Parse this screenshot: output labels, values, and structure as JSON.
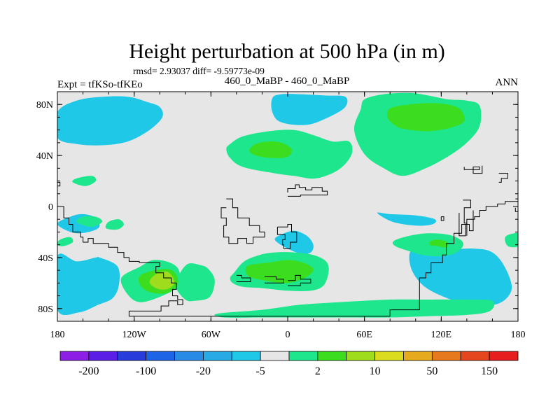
{
  "chart_data": {
    "type": "heatmap",
    "title": "Height perturbation at 500 hPa (in m)",
    "stats": "rmsd= 2.93037 diff= -9.59773e-09",
    "left_label": "Expt = tfKSo-tfKEo",
    "center_label": "460_0_MaBP - 460_0_MaBP",
    "right_label": "ANN",
    "x_range": [
      -180,
      180
    ],
    "y_range": [
      -90,
      90
    ],
    "x_ticks": [
      {
        "value": -180,
        "label": "180"
      },
      {
        "value": -120,
        "label": "120W"
      },
      {
        "value": -60,
        "label": "60W"
      },
      {
        "value": 0,
        "label": "0"
      },
      {
        "value": 60,
        "label": "60E"
      },
      {
        "value": 120,
        "label": "120E"
      },
      {
        "value": 180,
        "label": "180"
      }
    ],
    "y_ticks": [
      {
        "value": 80,
        "label": "80N"
      },
      {
        "value": 40,
        "label": "40N"
      },
      {
        "value": 0,
        "label": "0"
      },
      {
        "value": -40,
        "label": "40S"
      },
      {
        "value": -80,
        "label": "80S"
      }
    ],
    "colorbar": {
      "colors": [
        "#8c1ee6",
        "#5a1ee6",
        "#283cdc",
        "#1e64e6",
        "#288ce6",
        "#28aae6",
        "#1ec8e6",
        "#e6e6e6",
        "#1ee68c",
        "#3cdc1e",
        "#a0dc1e",
        "#dcdc1e",
        "#e6aa1e",
        "#e6781e",
        "#e6461e",
        "#e61e1e"
      ],
      "tick_labels": [
        "-200",
        "-100",
        "-20",
        "-5",
        "2",
        "10",
        "50",
        "150"
      ],
      "tick_bounds": [
        1,
        3,
        5,
        7,
        9,
        11,
        13,
        15
      ]
    },
    "regions": [
      {
        "level": -20,
        "lon": [
          -150,
          -140,
          -125,
          -112,
          -112,
          -125,
          -145,
          -160,
          -175,
          -180,
          -180,
          -165
        ],
        "lat": [
          80,
          83,
          83,
          76,
          68,
          59,
          52,
          54,
          59,
          63,
          72,
          76
        ]
      },
      {
        "level": -20,
        "lon": [
          -165,
          -150,
          -138,
          -138,
          -150,
          -165,
          -180,
          -180
        ],
        "lat": [
          -47,
          -43,
          -48,
          -60,
          -64,
          -61,
          -53,
          -48
        ]
      },
      {
        "level": -20,
        "lon": [
          105,
          125,
          150,
          165,
          170,
          150,
          125,
          107
        ],
        "lat": [
          -41,
          -40,
          -41,
          -45,
          -54,
          -62,
          -62,
          -53
        ]
      },
      {
        "level": -20,
        "lon": [
          0,
          9,
          8,
          0
        ],
        "lat": [
          74,
          74,
          69,
          69
        ]
      },
      {
        "level": -5,
        "lon": [
          -180,
          -165,
          -145,
          -125,
          -110,
          -100,
          -98,
          -108,
          -125,
          -145,
          -165,
          -180
        ],
        "lat": [
          74,
          83,
          86,
          86,
          82,
          78,
          70,
          60,
          51,
          48,
          49,
          54
        ]
      },
      {
        "level": -5,
        "lon": [
          -12,
          -5,
          10,
          30,
          45,
          45,
          32,
          15,
          -5,
          -12
        ],
        "lat": [
          85,
          88,
          88,
          87,
          86,
          78,
          70,
          64,
          66,
          74
        ]
      },
      {
        "level": -5,
        "lon": [
          -150,
          -165,
          -180,
          -180,
          -163,
          -148,
          -137,
          -132,
          -133,
          -147
        ],
        "lat": [
          -40,
          -43,
          -39,
          -81,
          -83,
          -77,
          -72,
          -62,
          -47,
          -40
        ]
      },
      {
        "level": -5,
        "lon": [
          98,
          120,
          145,
          160,
          170,
          175,
          165,
          145,
          125,
          106,
          96
        ],
        "lat": [
          -33,
          -34,
          -33,
          -36,
          -48,
          -65,
          -76,
          -77,
          -72,
          -62,
          -47
        ]
      },
      {
        "level": -5,
        "lon": [
          -5,
          5,
          15,
          20,
          18,
          10,
          -2,
          -10
        ],
        "lat": [
          -22,
          -19,
          -23,
          -30,
          -36,
          -37,
          -32,
          -26
        ]
      },
      {
        "level": -5,
        "lon": [
          -180,
          -170,
          -160,
          -150,
          -148,
          -165
        ],
        "lat": [
          -14,
          -8,
          -6,
          -9,
          -17,
          -21
        ]
      },
      {
        "level": -5,
        "lon": [
          70,
          80,
          100,
          115,
          113,
          100,
          82
        ],
        "lat": [
          -5,
          -6,
          -7,
          -10,
          -14,
          -15,
          -12
        ]
      },
      {
        "level": 2,
        "lon": [
          60,
          75,
          95,
          110,
          125,
          140,
          150,
          150,
          140,
          125,
          108,
          90,
          75,
          60,
          52,
          57
        ],
        "lat": [
          84,
          88,
          89,
          87,
          84,
          83,
          79,
          63,
          50,
          39,
          30,
          24,
          30,
          41,
          60,
          76
        ]
      },
      {
        "level": 2,
        "lon": [
          -45,
          -35,
          -15,
          5,
          20,
          35,
          48,
          50,
          40,
          22,
          5,
          -10,
          -35,
          -45,
          -48
        ],
        "lat": [
          49,
          55,
          59,
          60,
          56,
          51,
          51,
          41,
          29,
          22,
          24,
          26,
          31,
          38,
          45
        ]
      },
      {
        "level": 2,
        "lon": [
          -115,
          -105,
          -92,
          -85,
          -85,
          -98,
          -115,
          -125,
          -130
        ],
        "lat": [
          -47,
          -42,
          -44,
          -50,
          -62,
          -70,
          -75,
          -69,
          -56
        ]
      },
      {
        "level": 2,
        "lon": [
          -85,
          -78,
          -68,
          -62,
          -57,
          -61,
          -73,
          -80,
          -87
        ],
        "lat": [
          -54,
          -45,
          -46,
          -49,
          -58,
          -71,
          -74,
          -73,
          -64
        ]
      },
      {
        "level": 2,
        "lon": [
          -42,
          -34,
          -22,
          -10,
          5,
          20,
          30,
          32,
          28,
          18,
          0,
          -20,
          -35,
          -43,
          -45
        ],
        "lat": [
          -52,
          -43,
          -38,
          -36,
          -36,
          -38,
          -43,
          -51,
          -62,
          -66,
          -66,
          -64,
          -63,
          -60,
          -56
        ]
      },
      {
        "level": 2,
        "lon": [
          -55,
          -20,
          10,
          40,
          80,
          110,
          140,
          160,
          158,
          140,
          110,
          80,
          50,
          20,
          -20,
          -50
        ],
        "lat": [
          -84,
          -81,
          -77,
          -75,
          -73,
          -73,
          -73,
          -74,
          -82,
          -85,
          -86,
          -87,
          -87,
          -87,
          -87,
          -87
        ]
      },
      {
        "level": 2,
        "lon": [
          83,
          95,
          110,
          125,
          135,
          137,
          130,
          118,
          105,
          95,
          84
        ],
        "lat": [
          -27,
          -23,
          -21,
          -22,
          -26,
          -31,
          -37,
          -39,
          -38,
          -35,
          -31
        ]
      },
      {
        "level": 2,
        "lon": [
          -160,
          -150,
          -145,
          -154,
          -165
        ],
        "lat": [
          -8,
          -8,
          -12,
          -16,
          -12
        ]
      },
      {
        "level": 2,
        "lon": [
          -140,
          -132,
          -128,
          -133,
          -142
        ],
        "lat": [
          -12,
          -10,
          -14,
          -18,
          -17
        ]
      },
      {
        "level": 2,
        "lon": [
          -165,
          -153,
          -150,
          -158,
          -168
        ],
        "lat": [
          22,
          24,
          20,
          16,
          19
        ]
      },
      {
        "level": 2,
        "lon": [
          -178,
          -170,
          -168,
          -175,
          -180
        ],
        "lat": [
          -26,
          -24,
          -28,
          -31,
          -30
        ]
      },
      {
        "level": 2,
        "lon": [
          170,
          177,
          180,
          180,
          172
        ],
        "lat": [
          -24,
          -21,
          -22,
          -31,
          -31
        ]
      },
      {
        "level": 10,
        "lon": [
          80,
          95,
          110,
          125,
          135,
          138,
          128,
          110,
          90,
          82,
          78
        ],
        "lat": [
          77,
          80,
          81,
          80,
          76,
          67,
          62,
          59,
          61,
          65,
          70
        ]
      },
      {
        "level": 10,
        "lon": [
          -25,
          -15,
          -5,
          3,
          0,
          -12,
          -25,
          -30
        ],
        "lat": [
          49,
          51,
          50,
          45,
          39,
          38,
          40,
          44
        ]
      },
      {
        "level": 10,
        "lon": [
          -108,
          -95,
          -88,
          -86,
          -95,
          -108,
          -115,
          -116
        ],
        "lat": [
          -51,
          -49,
          -52,
          -61,
          -68,
          -67,
          -62,
          -55
        ]
      },
      {
        "level": 10,
        "lon": [
          -30,
          -15,
          0,
          12,
          20,
          15,
          0,
          -18,
          -30,
          -33
        ],
        "lat": [
          -46,
          -44,
          -42,
          -44,
          -49,
          -55,
          -60,
          -58,
          -55,
          -50
        ]
      },
      {
        "level": 10,
        "lon": [
          112,
          118,
          125,
          124,
          117,
          111
        ],
        "lat": [
          -27,
          -26,
          -28,
          -32,
          -31,
          -30
        ]
      },
      {
        "level": 50,
        "lon": [
          -103,
          -95,
          -90,
          -89,
          -95,
          -103,
          -108
        ],
        "lat": [
          -53,
          -51,
          -55,
          -61,
          -65,
          -64,
          -59
        ]
      }
    ],
    "coastlines": [
      {
        "lon": [
          -180,
          -175,
          -175,
          -171,
          -171,
          -168,
          -168,
          -162,
          -162,
          -160,
          -160,
          -156,
          -156,
          -152,
          -152,
          -140,
          -140,
          -133,
          -133,
          -128,
          -128,
          -124,
          -124,
          -116,
          -116,
          -100,
          -100,
          -103,
          -103,
          -97,
          -97,
          -91,
          -91,
          -87,
          -87,
          -90,
          -90,
          -86,
          -86,
          -82,
          -82,
          -86,
          -86,
          -93,
          -93,
          -99,
          -99,
          -124,
          -124,
          -100,
          -60,
          -20,
          20,
          56,
          80,
          80,
          103,
          103,
          108,
          108,
          112,
          112,
          121,
          121,
          124,
          124,
          130,
          130,
          136,
          136,
          140,
          140,
          146,
          146,
          150,
          150,
          155,
          155,
          164,
          164,
          170,
          170,
          180
        ],
        "lat": [
          0,
          0,
          -9,
          -9,
          -14,
          -14,
          -20,
          -20,
          -24,
          -24,
          -28,
          -28,
          -25,
          -25,
          -29,
          -29,
          -32,
          -32,
          -36,
          -36,
          -40,
          -40,
          -43,
          -43,
          -44,
          -44,
          -47,
          -47,
          -52,
          -52,
          -56,
          -56,
          -60,
          -60,
          -65,
          -65,
          -70,
          -70,
          -73,
          -73,
          -77,
          -77,
          -74,
          -74,
          -78,
          -78,
          -82,
          -82,
          -86,
          -86,
          -86,
          -86,
          -86,
          -86,
          -86,
          -81,
          -81,
          -56,
          -56,
          -52,
          -52,
          -44,
          -44,
          -38,
          -38,
          -29,
          -29,
          -21,
          -21,
          -14,
          -14,
          -10,
          -10,
          -8,
          -8,
          -3,
          -3,
          0,
          0,
          2,
          2,
          4,
          4
        ]
      },
      {
        "lon": [
          -48,
          -43,
          -43,
          -39,
          -39,
          -30,
          -30,
          -22,
          -22,
          -18,
          -18,
          -27,
          -27,
          -32,
          -32,
          -39,
          -39,
          -46,
          -46,
          -50,
          -50,
          -48,
          -48,
          -52,
          -52,
          -48
        ],
        "lat": [
          6,
          6,
          -1,
          -1,
          -9,
          -9,
          -15,
          -15,
          -20,
          -20,
          -24,
          -24,
          -29,
          -29,
          -25,
          -25,
          -29,
          -29,
          -24,
          -24,
          -15,
          -15,
          -9,
          -9,
          -1,
          -1
        ]
      },
      {
        "lon": [
          -8,
          0,
          0,
          3,
          3,
          7,
          7,
          2,
          2,
          -3,
          -3,
          -4,
          -4,
          -2,
          -2,
          -8,
          -8
        ],
        "lat": [
          -16,
          -16,
          -14,
          -14,
          -20,
          -20,
          -28,
          -28,
          -33,
          -33,
          -30,
          -30,
          -26,
          -26,
          -22,
          -22,
          -16
        ]
      },
      {
        "lon": [
          -40,
          -36,
          -36,
          -29,
          -29,
          -40
        ],
        "lat": [
          -54,
          -54,
          -56,
          -56,
          -59,
          -59
        ]
      },
      {
        "lon": [
          -18,
          -9,
          -9,
          -3,
          -3,
          -18
        ],
        "lat": [
          -55,
          -55,
          -57,
          -57,
          -60,
          -60
        ]
      },
      {
        "lon": [
          0,
          6,
          6,
          10,
          10,
          18,
          18,
          10,
          10,
          0
        ],
        "lat": [
          -58,
          -58,
          -54,
          -54,
          -57,
          -57,
          -60,
          -60,
          -62,
          -62
        ]
      },
      {
        "lon": [
          165,
          172,
          172,
          167,
          167,
          165
        ],
        "lat": [
          26,
          26,
          22,
          22,
          19,
          19
        ]
      },
      {
        "lon": [
          134,
          134,
          139,
          139,
          142,
          142,
          145,
          145
        ],
        "lat": [
          -5,
          -23,
          -23,
          -14,
          -14,
          -19,
          -19,
          -3
        ]
      },
      {
        "lon": [
          137,
          143,
          143,
          138,
          138,
          140,
          140
        ],
        "lat": [
          5,
          5,
          -1,
          -1,
          -13,
          -13,
          -23
        ]
      },
      {
        "lon": [
          178,
          180,
          180,
          178,
          178
        ],
        "lat": [
          6,
          6,
          -4,
          -4,
          -1
        ]
      },
      {
        "lon": [
          120,
          122,
          122,
          120,
          120
        ],
        "lat": [
          -8,
          -8,
          -11,
          -11,
          -8
        ]
      },
      {
        "lon": [
          0,
          0,
          6,
          6,
          9,
          9,
          14,
          14,
          19,
          19,
          27,
          27,
          31,
          31,
          10,
          10,
          0
        ],
        "lat": [
          11,
          14,
          14,
          17,
          17,
          15,
          15,
          13,
          13,
          15,
          15,
          12,
          12,
          9,
          9,
          8,
          8
        ]
      },
      {
        "lon": [
          138,
          138,
          150,
          150,
          145,
          145,
          152,
          152
        ],
        "lat": [
          31,
          29,
          29,
          31,
          31,
          26,
          26,
          32
        ]
      },
      {
        "lon": [
          -180,
          -178,
          -178,
          -180
        ],
        "lat": [
          19,
          19,
          16,
          16
        ]
      }
    ]
  }
}
